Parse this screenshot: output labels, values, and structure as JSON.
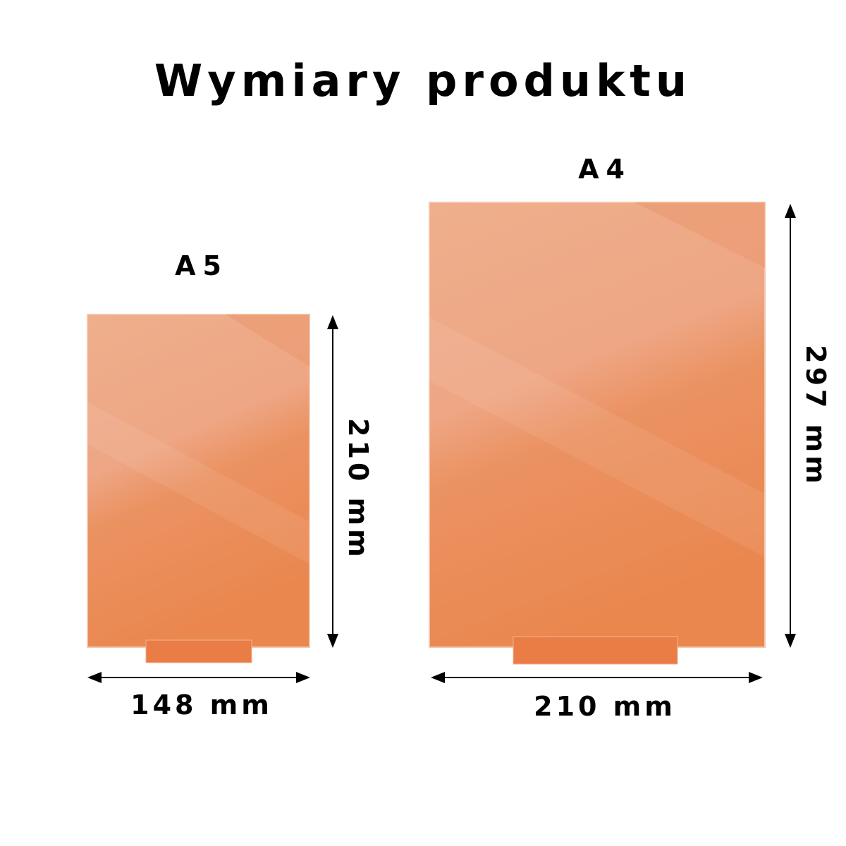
{
  "title": "Wymiary produktu",
  "colors": {
    "panel_light": "#f0ad88",
    "panel_dark": "#ea8753",
    "base": "#ea7a42",
    "arrow": "#000000"
  },
  "products": [
    {
      "name": "A5",
      "width_label": "148 mm",
      "height_label": "210 mm"
    },
    {
      "name": "A4",
      "width_label": "210 mm",
      "height_label": "297 mm"
    }
  ]
}
